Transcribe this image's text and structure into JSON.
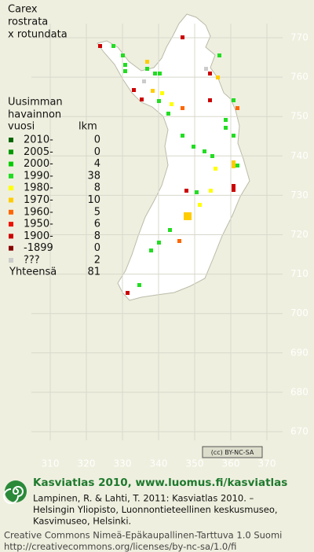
{
  "title": [
    "Carex",
    "rostrata",
    "x rotundata"
  ],
  "legend": {
    "header": [
      "Uusimman",
      "havainnon",
      "vuosi",
      "lkm"
    ],
    "rows": [
      {
        "label": "2010-",
        "count": 0,
        "color": "#006600"
      },
      {
        "label": "2005-",
        "count": 0,
        "color": "#009900"
      },
      {
        "label": "2000-",
        "count": 4,
        "color": "#00cc00"
      },
      {
        "label": "1990-",
        "count": 38,
        "color": "#22dd22"
      },
      {
        "label": "1980-",
        "count": 8,
        "color": "#ffff00"
      },
      {
        "label": "1970-",
        "count": 10,
        "color": "#ffcc00"
      },
      {
        "label": "1960-",
        "count": 5,
        "color": "#ff6600"
      },
      {
        "label": "1950-",
        "count": 6,
        "color": "#ee1100"
      },
      {
        "label": "1900-",
        "count": 8,
        "color": "#cc0000"
      },
      {
        "label": "-1899",
        "count": 0,
        "color": "#880000"
      },
      {
        "label": "???",
        "count": 2,
        "color": "#cccccc"
      }
    ],
    "total": {
      "label": "Yhteensä",
      "count": 81
    }
  },
  "grid": {
    "y_labels": [
      770,
      760,
      750,
      740,
      730,
      720,
      710,
      700,
      690,
      680,
      670
    ],
    "x_labels": [
      310,
      320,
      330,
      340,
      350,
      360,
      370
    ]
  },
  "license_badge": "(cc) BY-NC-SA",
  "footer": {
    "heading": "Kasviatlas 2010, www.luomus.fi/kasviatlas",
    "citation": [
      "Lampinen, R. & Lahti, T. 2011: Kasviatlas 2010. –",
      "Helsingin Yliopisto, Luonnontieteellinen keskusmuseo,",
      "Kasvimuseo, Helsinki."
    ],
    "license": [
      "Creative Commons Nimeä-Epäkaupallinen-Tarttuva 1.0 Suomi",
      "http://creativecommons.org/licenses/by-nc-sa/1.0/fi"
    ]
  }
}
